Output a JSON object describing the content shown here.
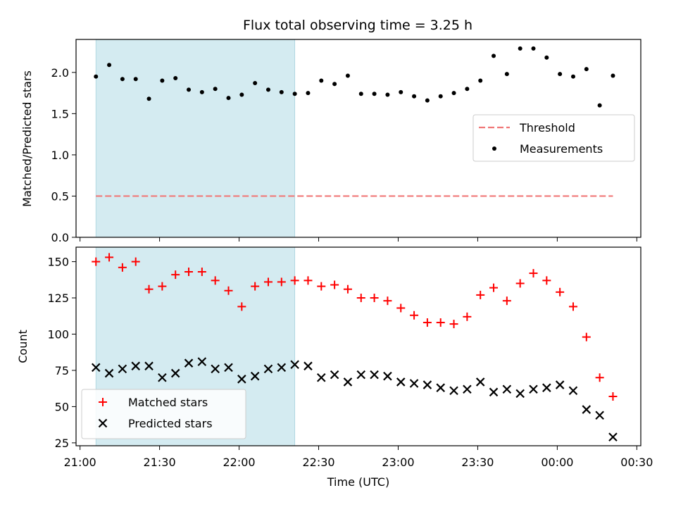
{
  "chart_data": [
    {
      "type": "scatter",
      "title": "Flux total observing time = 3.25 h",
      "xlabel": "",
      "ylabel": "Matched/Predicted stars",
      "ylim": [
        0,
        2.4
      ],
      "yticks": [
        "0.0",
        "0.5",
        "1.0",
        "1.5",
        "2.0"
      ],
      "shaded_span": [
        "21:06",
        "22:21"
      ],
      "shade_color": "#d4ebf1",
      "legend_position": "center-right",
      "series": [
        {
          "name": "Threshold",
          "kind": "dashed-line",
          "color": "#f07878",
          "x": [
            "21:06",
            "00:21"
          ],
          "y": [
            0.5,
            0.5
          ]
        },
        {
          "name": "Measurements",
          "kind": "dot",
          "color": "#000000",
          "x": [
            "21:06",
            "21:11",
            "21:16",
            "21:21",
            "21:26",
            "21:31",
            "21:36",
            "21:41",
            "21:46",
            "21:51",
            "21:56",
            "22:01",
            "22:06",
            "22:11",
            "22:16",
            "22:21",
            "22:26",
            "22:31",
            "22:36",
            "22:41",
            "22:46",
            "22:51",
            "22:56",
            "23:01",
            "23:06",
            "23:11",
            "23:16",
            "23:21",
            "23:26",
            "23:31",
            "23:36",
            "23:41",
            "23:46",
            "23:51",
            "23:56",
            "00:01",
            "00:06",
            "00:11",
            "00:16",
            "00:21"
          ],
          "y": [
            1.95,
            2.09,
            1.92,
            1.92,
            1.68,
            1.9,
            1.93,
            1.79,
            1.76,
            1.8,
            1.69,
            1.73,
            1.87,
            1.79,
            1.76,
            1.74,
            1.75,
            1.9,
            1.86,
            1.96,
            1.74,
            1.74,
            1.73,
            1.76,
            1.71,
            1.66,
            1.71,
            1.75,
            1.8,
            1.9,
            2.2,
            1.98,
            2.29,
            2.29,
            2.18,
            1.98,
            1.95,
            2.04,
            1.6,
            1.96
          ]
        }
      ]
    },
    {
      "type": "scatter",
      "title": "",
      "xlabel": "Time (UTC)",
      "ylabel": "Count",
      "ylim": [
        23,
        160
      ],
      "yticks": [
        "25",
        "50",
        "75",
        "100",
        "125",
        "150"
      ],
      "xticks": [
        "21:00",
        "21:30",
        "22:00",
        "22:30",
        "23:00",
        "23:30",
        "00:00",
        "00:30"
      ],
      "shaded_span": [
        "21:06",
        "22:21"
      ],
      "shade_color": "#d4ebf1",
      "legend_position": "lower-left",
      "series": [
        {
          "name": "Matched stars",
          "kind": "plus",
          "color": "#ff0000",
          "x": [
            "21:06",
            "21:11",
            "21:16",
            "21:21",
            "21:26",
            "21:31",
            "21:36",
            "21:41",
            "21:46",
            "21:51",
            "21:56",
            "22:01",
            "22:06",
            "22:11",
            "22:16",
            "22:21",
            "22:26",
            "22:31",
            "22:36",
            "22:41",
            "22:46",
            "22:51",
            "22:56",
            "23:01",
            "23:06",
            "23:11",
            "23:16",
            "23:21",
            "23:26",
            "23:31",
            "23:36",
            "23:41",
            "23:46",
            "23:51",
            "23:56",
            "00:01",
            "00:06",
            "00:11",
            "00:16",
            "00:21"
          ],
          "y": [
            150,
            153,
            146,
            150,
            131,
            133,
            141,
            143,
            143,
            137,
            130,
            119,
            133,
            136,
            136,
            137,
            137,
            133,
            134,
            131,
            125,
            125,
            123,
            118,
            113,
            108,
            108,
            107,
            112,
            127,
            132,
            123,
            135,
            142,
            137,
            129,
            119,
            98,
            70,
            57
          ]
        },
        {
          "name": "Predicted stars",
          "kind": "cross",
          "color": "#000000",
          "x": [
            "21:06",
            "21:11",
            "21:16",
            "21:21",
            "21:26",
            "21:31",
            "21:36",
            "21:41",
            "21:46",
            "21:51",
            "21:56",
            "22:01",
            "22:06",
            "22:11",
            "22:16",
            "22:21",
            "22:26",
            "22:31",
            "22:36",
            "22:41",
            "22:46",
            "22:51",
            "22:56",
            "23:01",
            "23:06",
            "23:11",
            "23:16",
            "23:21",
            "23:26",
            "23:31",
            "23:36",
            "23:41",
            "23:46",
            "23:51",
            "23:56",
            "00:01",
            "00:06",
            "00:11",
            "00:16",
            "00:21"
          ],
          "y": [
            77,
            73,
            76,
            78,
            78,
            70,
            73,
            80,
            81,
            76,
            77,
            69,
            71,
            76,
            77,
            79,
            78,
            70,
            72,
            67,
            72,
            72,
            71,
            67,
            66,
            65,
            63,
            61,
            62,
            67,
            60,
            62,
            59,
            62,
            63,
            65,
            61,
            48,
            44,
            29
          ]
        }
      ]
    }
  ]
}
